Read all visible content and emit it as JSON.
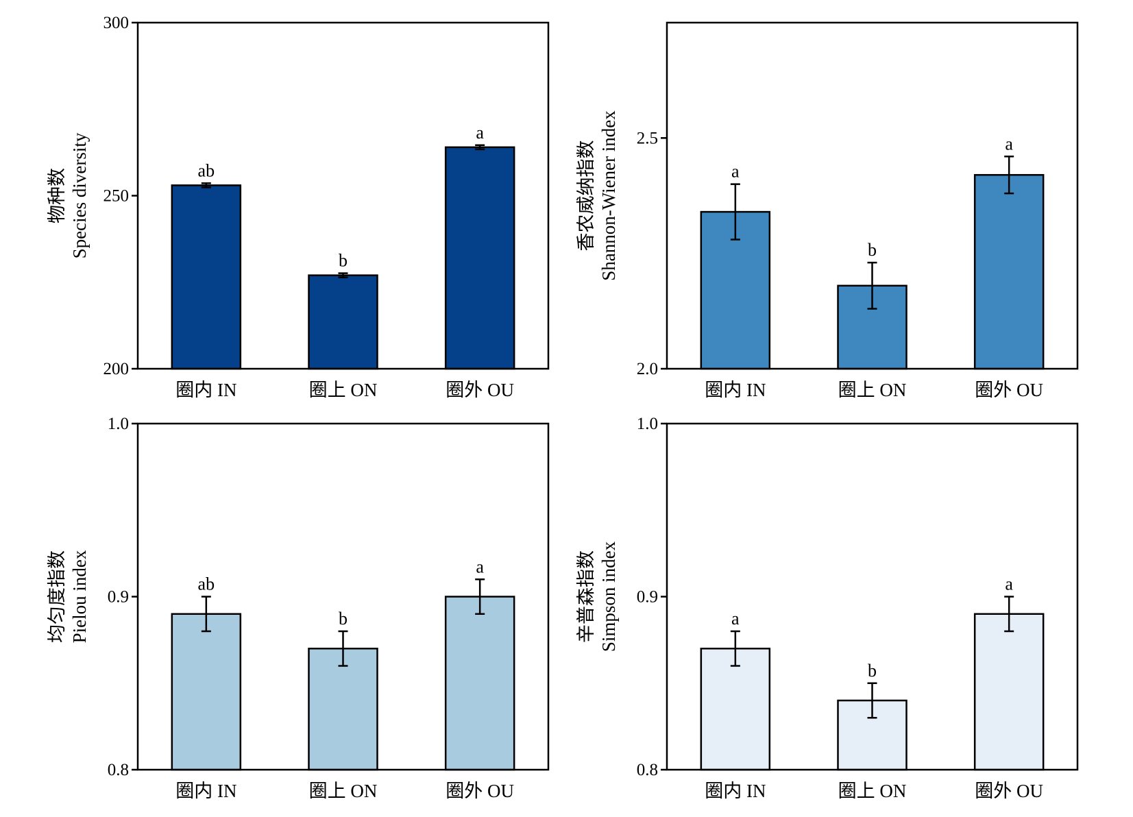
{
  "chart_data": [
    {
      "type": "bar",
      "categories": [
        "圈内 IN",
        "圈上 ON",
        "圈外 OU"
      ],
      "values": [
        253,
        227,
        264
      ],
      "errors": [
        0.6,
        0.6,
        0.6
      ],
      "significance": [
        "ab",
        "b",
        "a"
      ],
      "ylabel": [
        "物种数",
        "Species diversity"
      ],
      "ylim": [
        200,
        300
      ],
      "yticks": [
        "200",
        "250",
        "300"
      ],
      "color": "#04418a"
    },
    {
      "type": "bar",
      "categories": [
        "圈内 IN",
        "圈上 ON",
        "圈外 OU"
      ],
      "values": [
        2.34,
        2.18,
        2.42
      ],
      "errors": [
        0.06,
        0.05,
        0.04
      ],
      "significance": [
        "a",
        "b",
        "a"
      ],
      "ylabel": [
        "香农威纳指数",
        "Shannon-Wiener index"
      ],
      "ylim": [
        2.0,
        2.75
      ],
      "yticks": [
        "2.0",
        "2.5"
      ],
      "color": "#3f88bf"
    },
    {
      "type": "bar",
      "categories": [
        "圈内 IN",
        "圈上 ON",
        "圈外 OU"
      ],
      "values": [
        0.89,
        0.87,
        0.9
      ],
      "errors": [
        0.01,
        0.01,
        0.01
      ],
      "significance": [
        "ab",
        "b",
        "a"
      ],
      "ylabel": [
        "均匀度指数",
        "Pielou index"
      ],
      "ylim": [
        0.8,
        1.0
      ],
      "yticks": [
        "0.8",
        "0.9",
        "1.0"
      ],
      "color": "#a9cbe0"
    },
    {
      "type": "bar",
      "categories": [
        "圈内 IN",
        "圈上 ON",
        "圈外 OU"
      ],
      "values": [
        0.87,
        0.84,
        0.89
      ],
      "errors": [
        0.01,
        0.01,
        0.01
      ],
      "significance": [
        "a",
        "b",
        "a"
      ],
      "ylabel": [
        "辛普森指数",
        "Simpson index"
      ],
      "ylim": [
        0.8,
        1.0
      ],
      "yticks": [
        "0.8",
        "0.9",
        "1.0"
      ],
      "color": "#e6eef8"
    }
  ]
}
